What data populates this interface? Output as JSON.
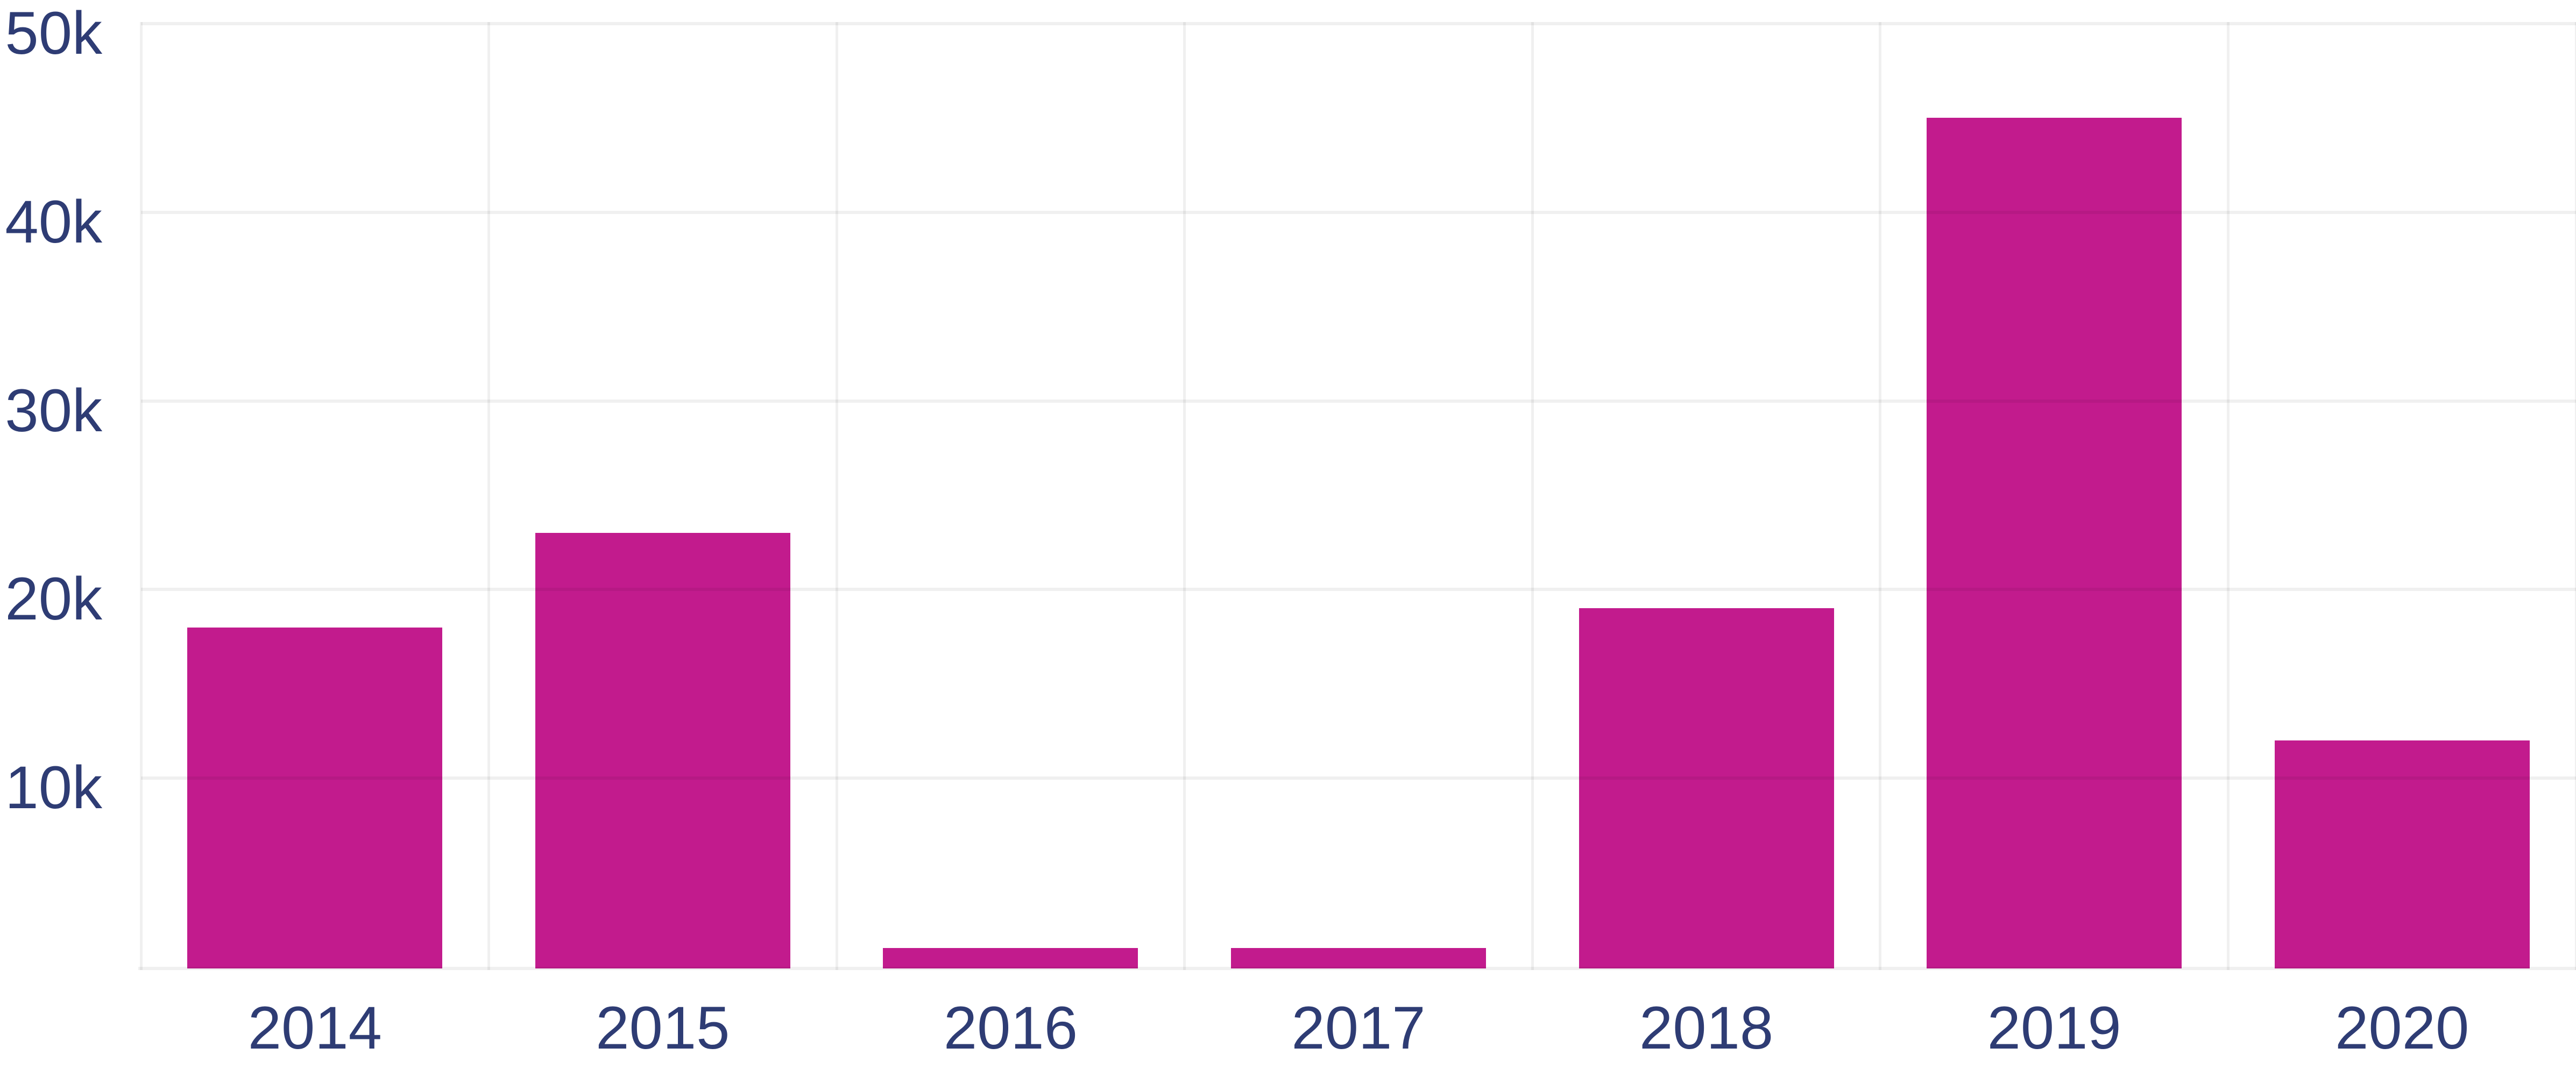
{
  "chart": {
    "background_color": "#ffffff",
    "bar_color": "#c21b8d",
    "gridline_color": "rgba(0,0,0,0.06)",
    "label_color": "#2e3c74"
  },
  "chart_data": {
    "type": "bar",
    "title": "",
    "categories": [
      "2014",
      "2015",
      "2016",
      "2017",
      "2018",
      "2019",
      "2020"
    ],
    "values": [
      18000,
      23000,
      1000,
      1000,
      19000,
      45000,
      12000
    ],
    "xlabel": "",
    "ylabel": "",
    "ylim": [
      0,
      50000
    ],
    "yticks": [
      {
        "value": 10000,
        "label": "10k"
      },
      {
        "value": 20000,
        "label": "20k"
      },
      {
        "value": 30000,
        "label": "30k"
      },
      {
        "value": 40000,
        "label": "40k"
      },
      {
        "value": 50000,
        "label": "50k"
      }
    ],
    "grid": true,
    "legend_position": "none"
  }
}
